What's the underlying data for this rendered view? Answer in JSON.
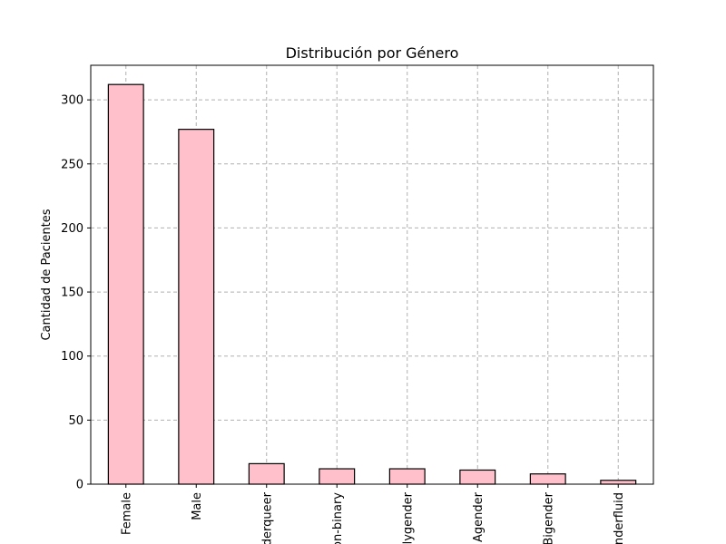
{
  "chart_data": {
    "type": "bar",
    "title": "Distribución por Género",
    "xlabel": "",
    "ylabel": "Cantidad de Pacientes",
    "categories": [
      "Female",
      "Male",
      "Genderqueer",
      "Non-binary",
      "Polygender",
      "Agender",
      "Bigender",
      "Genderfluid"
    ],
    "values": [
      312,
      277,
      16,
      12,
      12,
      11,
      8,
      3
    ],
    "ylim": [
      0,
      327
    ],
    "yticks": [
      0,
      50,
      100,
      150,
      200,
      250,
      300
    ],
    "grid": true,
    "bar_color": "#ffc0cb",
    "edge_color": "#000000"
  }
}
